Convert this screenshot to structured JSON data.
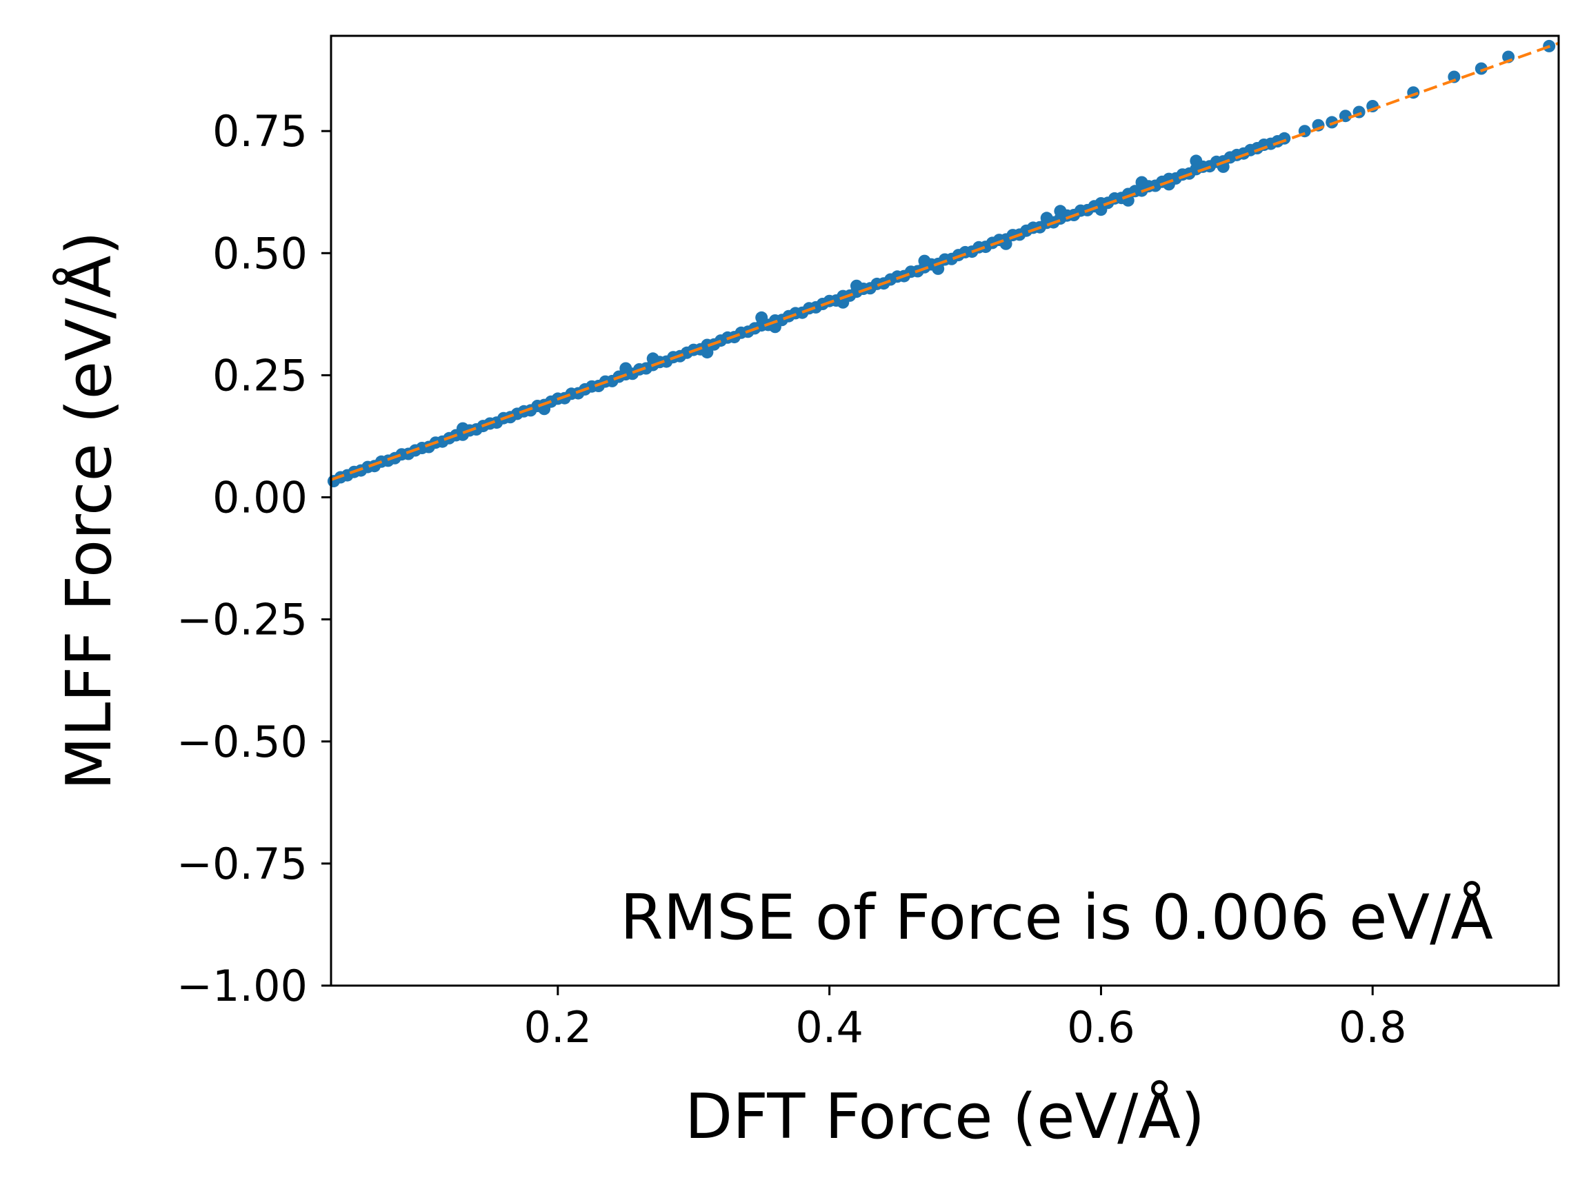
{
  "chart_data": {
    "type": "scatter",
    "xlabel": "DFT Force (eV/Å)",
    "ylabel": "MLFF Force (eV/Å)",
    "annotation": "RMSE of Force is 0.006 eV/Å",
    "xlim": [
      0.033,
      0.937
    ],
    "ylim": [
      -1.0,
      0.945
    ],
    "xticks": [
      {
        "value": 0.2,
        "label": "0.2"
      },
      {
        "value": 0.4,
        "label": "0.4"
      },
      {
        "value": 0.6,
        "label": "0.6"
      },
      {
        "value": 0.8,
        "label": "0.8"
      }
    ],
    "yticks": [
      {
        "value": -1.0,
        "label": "−1.00"
      },
      {
        "value": -0.75,
        "label": "−0.75"
      },
      {
        "value": -0.5,
        "label": "−0.50"
      },
      {
        "value": -0.25,
        "label": "−0.25"
      },
      {
        "value": 0.0,
        "label": "0.00"
      },
      {
        "value": 0.25,
        "label": "0.25"
      },
      {
        "value": 0.5,
        "label": "0.50"
      },
      {
        "value": 0.75,
        "label": "0.75"
      }
    ],
    "grid": false,
    "colors": {
      "points": "#1f77b4",
      "fit_line": "#ff7f0e"
    },
    "fit_line": {
      "x": [
        0.033,
        0.937
      ],
      "y": [
        0.036,
        0.93
      ]
    },
    "series": [
      {
        "points": [
          [
            0.035,
            0.033
          ],
          [
            0.04,
            0.041
          ],
          [
            0.045,
            0.045
          ],
          [
            0.05,
            0.052
          ],
          [
            0.055,
            0.055
          ],
          [
            0.06,
            0.062
          ],
          [
            0.065,
            0.064
          ],
          [
            0.07,
            0.073
          ],
          [
            0.075,
            0.075
          ],
          [
            0.08,
            0.08
          ],
          [
            0.085,
            0.088
          ],
          [
            0.09,
            0.089
          ],
          [
            0.095,
            0.096
          ],
          [
            0.1,
            0.101
          ],
          [
            0.105,
            0.103
          ],
          [
            0.11,
            0.112
          ],
          [
            0.115,
            0.114
          ],
          [
            0.12,
            0.121
          ],
          [
            0.125,
            0.127
          ],
          [
            0.13,
            0.128
          ],
          [
            0.135,
            0.137
          ],
          [
            0.14,
            0.139
          ],
          [
            0.145,
            0.146
          ],
          [
            0.15,
            0.151
          ],
          [
            0.155,
            0.153
          ],
          [
            0.16,
            0.162
          ],
          [
            0.165,
            0.164
          ],
          [
            0.17,
            0.171
          ],
          [
            0.175,
            0.176
          ],
          [
            0.18,
            0.178
          ],
          [
            0.185,
            0.187
          ],
          [
            0.19,
            0.189
          ],
          [
            0.195,
            0.196
          ],
          [
            0.2,
            0.202
          ],
          [
            0.205,
            0.203
          ],
          [
            0.21,
            0.212
          ],
          [
            0.215,
            0.213
          ],
          [
            0.22,
            0.221
          ],
          [
            0.225,
            0.227
          ],
          [
            0.23,
            0.228
          ],
          [
            0.235,
            0.237
          ],
          [
            0.24,
            0.238
          ],
          [
            0.245,
            0.247
          ],
          [
            0.25,
            0.252
          ],
          [
            0.255,
            0.253
          ],
          [
            0.26,
            0.262
          ],
          [
            0.265,
            0.264
          ],
          [
            0.27,
            0.271
          ],
          [
            0.275,
            0.277
          ],
          [
            0.28,
            0.278
          ],
          [
            0.285,
            0.287
          ],
          [
            0.29,
            0.289
          ],
          [
            0.295,
            0.296
          ],
          [
            0.3,
            0.302
          ],
          [
            0.305,
            0.303
          ],
          [
            0.31,
            0.312
          ],
          [
            0.315,
            0.313
          ],
          [
            0.32,
            0.321
          ],
          [
            0.325,
            0.327
          ],
          [
            0.33,
            0.328
          ],
          [
            0.335,
            0.337
          ],
          [
            0.34,
            0.339
          ],
          [
            0.345,
            0.346
          ],
          [
            0.35,
            0.352
          ],
          [
            0.355,
            0.353
          ],
          [
            0.36,
            0.362
          ],
          [
            0.365,
            0.363
          ],
          [
            0.37,
            0.371
          ],
          [
            0.375,
            0.377
          ],
          [
            0.38,
            0.378
          ],
          [
            0.385,
            0.387
          ],
          [
            0.39,
            0.389
          ],
          [
            0.395,
            0.396
          ],
          [
            0.4,
            0.402
          ],
          [
            0.405,
            0.403
          ],
          [
            0.41,
            0.412
          ],
          [
            0.415,
            0.413
          ],
          [
            0.42,
            0.421
          ],
          [
            0.425,
            0.427
          ],
          [
            0.43,
            0.428
          ],
          [
            0.435,
            0.437
          ],
          [
            0.44,
            0.438
          ],
          [
            0.445,
            0.446
          ],
          [
            0.45,
            0.452
          ],
          [
            0.455,
            0.453
          ],
          [
            0.46,
            0.462
          ],
          [
            0.465,
            0.463
          ],
          [
            0.47,
            0.471
          ],
          [
            0.475,
            0.477
          ],
          [
            0.48,
            0.478
          ],
          [
            0.485,
            0.487
          ],
          [
            0.49,
            0.488
          ],
          [
            0.495,
            0.496
          ],
          [
            0.5,
            0.502
          ],
          [
            0.505,
            0.503
          ],
          [
            0.51,
            0.512
          ],
          [
            0.515,
            0.513
          ],
          [
            0.52,
            0.521
          ],
          [
            0.525,
            0.527
          ],
          [
            0.53,
            0.528
          ],
          [
            0.535,
            0.537
          ],
          [
            0.54,
            0.538
          ],
          [
            0.545,
            0.546
          ],
          [
            0.55,
            0.552
          ],
          [
            0.555,
            0.553
          ],
          [
            0.56,
            0.562
          ],
          [
            0.565,
            0.563
          ],
          [
            0.57,
            0.571
          ],
          [
            0.575,
            0.577
          ],
          [
            0.58,
            0.578
          ],
          [
            0.585,
            0.587
          ],
          [
            0.59,
            0.588
          ],
          [
            0.595,
            0.596
          ],
          [
            0.6,
            0.602
          ],
          [
            0.605,
            0.603
          ],
          [
            0.61,
            0.612
          ],
          [
            0.615,
            0.613
          ],
          [
            0.62,
            0.621
          ],
          [
            0.625,
            0.627
          ],
          [
            0.63,
            0.628
          ],
          [
            0.635,
            0.637
          ],
          [
            0.64,
            0.638
          ],
          [
            0.645,
            0.646
          ],
          [
            0.65,
            0.652
          ],
          [
            0.655,
            0.653
          ],
          [
            0.66,
            0.661
          ],
          [
            0.665,
            0.663
          ],
          [
            0.67,
            0.672
          ],
          [
            0.675,
            0.677
          ],
          [
            0.68,
            0.678
          ],
          [
            0.685,
            0.687
          ],
          [
            0.69,
            0.688
          ],
          [
            0.695,
            0.696
          ],
          [
            0.7,
            0.701
          ],
          [
            0.705,
            0.704
          ],
          [
            0.71,
            0.711
          ],
          [
            0.715,
            0.715
          ],
          [
            0.72,
            0.722
          ],
          [
            0.725,
            0.724
          ],
          [
            0.73,
            0.729
          ],
          [
            0.735,
            0.735
          ],
          [
            0.13,
            0.141
          ],
          [
            0.19,
            0.181
          ],
          [
            0.25,
            0.264
          ],
          [
            0.31,
            0.297
          ],
          [
            0.35,
            0.368
          ],
          [
            0.41,
            0.399
          ],
          [
            0.47,
            0.484
          ],
          [
            0.53,
            0.519
          ],
          [
            0.57,
            0.586
          ],
          [
            0.6,
            0.589
          ],
          [
            0.63,
            0.645
          ],
          [
            0.65,
            0.641
          ],
          [
            0.67,
            0.689
          ],
          [
            0.69,
            0.677
          ],
          [
            0.62,
            0.608
          ],
          [
            0.56,
            0.572
          ],
          [
            0.48,
            0.468
          ],
          [
            0.42,
            0.433
          ],
          [
            0.36,
            0.349
          ],
          [
            0.27,
            0.284
          ],
          [
            0.75,
            0.75
          ],
          [
            0.76,
            0.762
          ],
          [
            0.77,
            0.768
          ],
          [
            0.78,
            0.781
          ],
          [
            0.79,
            0.789
          ],
          [
            0.8,
            0.801
          ],
          [
            0.83,
            0.829
          ],
          [
            0.86,
            0.861
          ],
          [
            0.88,
            0.878
          ],
          [
            0.9,
            0.902
          ],
          [
            0.93,
            0.924
          ]
        ]
      }
    ]
  }
}
